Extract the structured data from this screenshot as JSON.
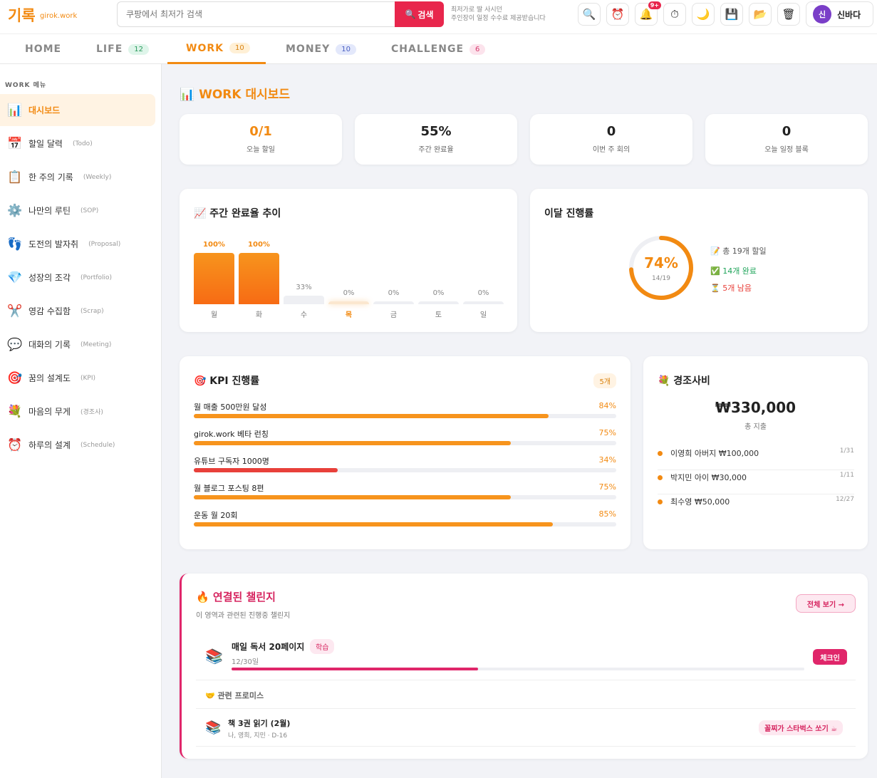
{
  "header": {
    "logo": "기록",
    "logo_sub": "girok.work",
    "search_placeholder": "쿠팡에서 최저가 검색",
    "search_button": "검색",
    "ad_line1": "최저가로 딸 사시던",
    "ad_line2": "주인장이 일정 수수료 제공받습니다",
    "notif_badge": "9+",
    "user_initial": "신",
    "user_name": "신바다"
  },
  "tabs": [
    {
      "label": "HOME",
      "count": ""
    },
    {
      "label": "LIFE",
      "count": "12"
    },
    {
      "label": "WORK",
      "count": "10"
    },
    {
      "label": "MONEY",
      "count": "10"
    },
    {
      "label": "CHALLENGE",
      "count": "6"
    }
  ],
  "sidebar": {
    "heading": "WORK 메뉴",
    "items": [
      {
        "icon": "📊",
        "label": "대시보드",
        "en": ""
      },
      {
        "icon": "📅",
        "label": "할일 달력",
        "en": "(Todo)"
      },
      {
        "icon": "📋",
        "label": "한 주의 기록",
        "en": "(Weekly)"
      },
      {
        "icon": "⚙️",
        "label": "나만의 루틴",
        "en": "(SOP)"
      },
      {
        "icon": "👣",
        "label": "도전의 발자취",
        "en": "(Proposal)"
      },
      {
        "icon": "💎",
        "label": "성장의 조각",
        "en": "(Portfolio)"
      },
      {
        "icon": "✂️",
        "label": "영감 수집함",
        "en": "(Scrap)"
      },
      {
        "icon": "💬",
        "label": "대화의 기록",
        "en": "(Meeting)"
      },
      {
        "icon": "🎯",
        "label": "꿈의 설계도",
        "en": "(KPI)"
      },
      {
        "icon": "💐",
        "label": "마음의 무게",
        "en": "(경조사)"
      },
      {
        "icon": "⏰",
        "label": "하루의 설계",
        "en": "(Schedule)"
      }
    ]
  },
  "page": {
    "title": "📊 WORK 대시보드"
  },
  "stats": [
    {
      "value": "0/1",
      "label": "오늘 할일"
    },
    {
      "value": "55%",
      "label": "주간 완료율"
    },
    {
      "value": "0",
      "label": "이번 주 회의"
    },
    {
      "value": "0",
      "label": "오늘 일정 블록"
    }
  ],
  "weekly": {
    "title": "📈 주간 완료율 추이"
  },
  "chart_data": {
    "type": "bar",
    "categories": [
      "월",
      "화",
      "수",
      "목",
      "금",
      "토",
      "일"
    ],
    "values": [
      100,
      100,
      33,
      0,
      0,
      0,
      0
    ],
    "labels": [
      "100%",
      "100%",
      "33%",
      "0%",
      "0%",
      "0%",
      "0%"
    ],
    "title": "주간 완료율 추이",
    "ylim": [
      0,
      100
    ],
    "highlight": "목"
  },
  "monthly": {
    "title": "이달 진행률",
    "percent": 74,
    "percent_label": "74%",
    "fraction": "14/19",
    "total": "📝 총 19개 할일",
    "done": "✅ 14개 완료",
    "left": "⏳ 5개 남음"
  },
  "kpi": {
    "title": "🎯 KPI 진행률",
    "count_badge": "5개",
    "items": [
      {
        "name": "월 매출 500만원 달성",
        "pct_label": "84%",
        "pct": 84
      },
      {
        "name": "girok.work 베타 런칭",
        "pct_label": "75%",
        "pct": 75
      },
      {
        "name": "유튜브 구독자 1000명",
        "pct_label": "34%",
        "pct": 34
      },
      {
        "name": "월 블로그 포스팅 8편",
        "pct_label": "75%",
        "pct": 75
      },
      {
        "name": "운동 월 20회",
        "pct_label": "85%",
        "pct": 85
      }
    ]
  },
  "gyeongjo": {
    "title": "💐 경조사비",
    "total": "₩330,000",
    "total_label": "총 지출",
    "items": [
      {
        "text": "이영희 아버지 ₩100,000",
        "date": "1/31"
      },
      {
        "text": "박지민 아이 ₩30,000",
        "date": "1/11"
      },
      {
        "text": "최수영 ₩50,000",
        "date": "12/27"
      }
    ]
  },
  "challenges": {
    "title": "🔥 연결된 챌린지",
    "subtitle": "이 영역과 관련된 진행중 챌린지",
    "view_all": "전체 보기 →",
    "item": {
      "icon": "📚",
      "name": "매일 독서 20페이지",
      "tag": "학습",
      "date": "12/30일",
      "progress": 0.43,
      "checkin": "체크인"
    },
    "promise_heading": "🤝 관련 프로미스",
    "promise": {
      "icon": "📚",
      "name": "책 3권 읽기 (2월)",
      "meta": "나, 영희, 지민 · D-16",
      "reward": "꼴찌가 스타벅스 쏘기 ☕"
    }
  },
  "colors": {
    "accent": "#f28a12",
    "pink": "#e8264c",
    "red": "#e8403a"
  }
}
